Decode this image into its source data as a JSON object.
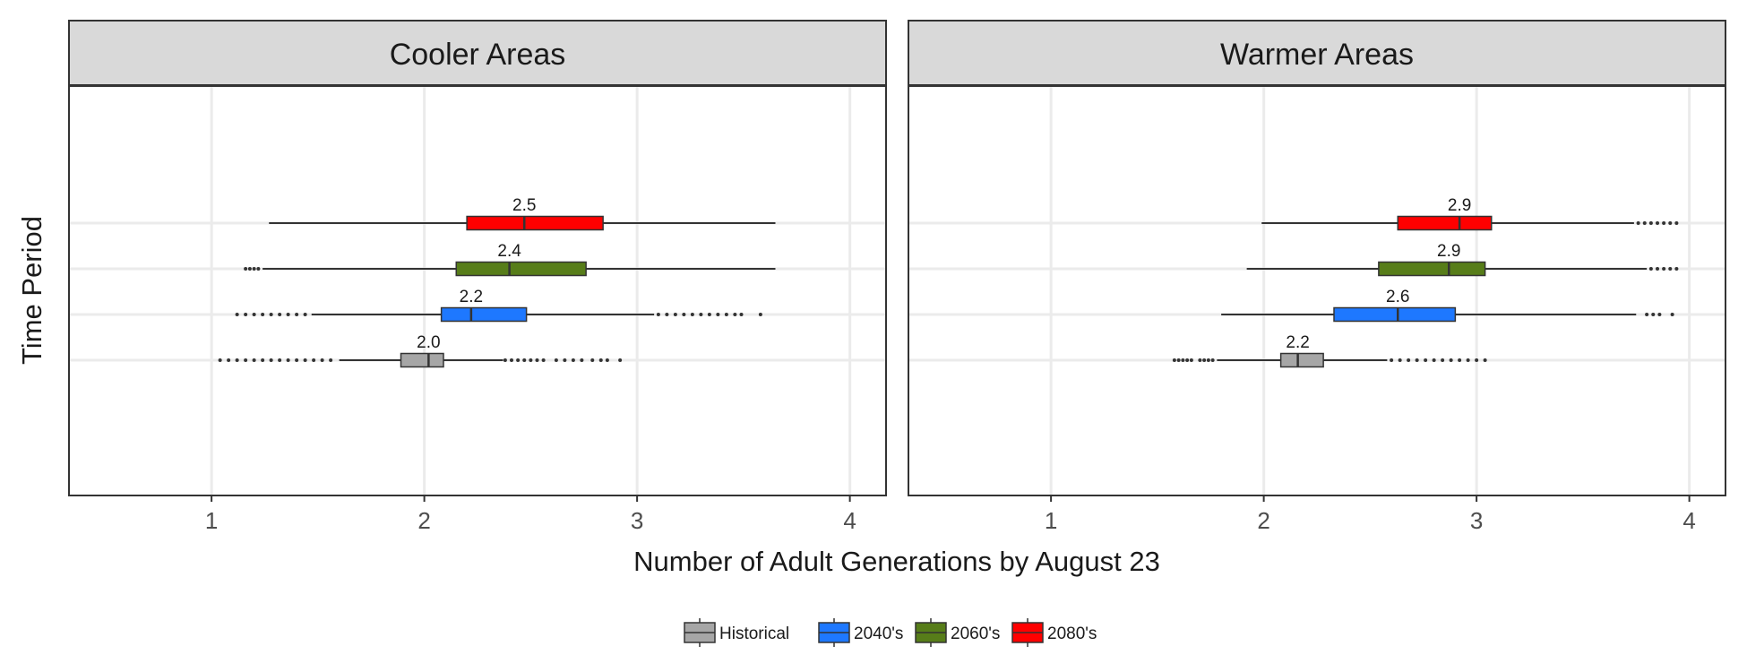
{
  "chart_data": {
    "type": "boxplot",
    "orientation": "horizontal",
    "xlabel": "Number of Adult Generations by August 23",
    "ylabel": "Time Period",
    "xlim": [
      0.33,
      4.17
    ],
    "x_ticks": [
      1,
      2,
      3,
      4
    ],
    "x_tick_labels": [
      "1",
      "2",
      "3",
      "4"
    ],
    "grid": true,
    "legend": {
      "position": "bottom",
      "entries": [
        {
          "name": "Historical",
          "color": "#a6a6a6"
        },
        {
          "name": "2040's",
          "color": "#1e78ff"
        },
        {
          "name": "2060's",
          "color": "#577d19"
        },
        {
          "name": "2080's",
          "color": "#ff0000"
        }
      ]
    },
    "panels": [
      {
        "title": "Cooler Areas",
        "groups": [
          {
            "series": "Historical",
            "whisker_low": 1.6,
            "q1": 1.89,
            "median": 2.02,
            "q3": 2.09,
            "whisker_high": 2.37,
            "label": "2.0",
            "outliers_low": [
              1.04,
              1.08,
              1.12,
              1.16,
              1.2,
              1.24,
              1.28,
              1.32,
              1.36,
              1.4,
              1.44,
              1.48,
              1.52,
              1.56
            ],
            "outliers_high": [
              2.38,
              2.41,
              2.44,
              2.47,
              2.5,
              2.53,
              2.56,
              2.62,
              2.66,
              2.7,
              2.74,
              2.79,
              2.83,
              2.86,
              2.92
            ]
          },
          {
            "series": "2040's",
            "whisker_low": 1.47,
            "q1": 2.08,
            "median": 2.22,
            "q3": 2.48,
            "whisker_high": 3.08,
            "label": "2.2",
            "outliers_low": [
              1.12,
              1.16,
              1.2,
              1.24,
              1.28,
              1.32,
              1.36,
              1.4,
              1.44
            ],
            "outliers_high": [
              3.1,
              3.14,
              3.18,
              3.22,
              3.26,
              3.3,
              3.34,
              3.38,
              3.42,
              3.46,
              3.49,
              3.58
            ]
          },
          {
            "series": "2060's",
            "whisker_low": 1.24,
            "q1": 2.15,
            "median": 2.4,
            "q3": 2.76,
            "whisker_high": 3.65,
            "label": "2.4",
            "outliers_low": [
              1.16,
              1.18,
              1.2,
              1.22
            ],
            "outliers_high": []
          },
          {
            "series": "2080's",
            "whisker_low": 1.27,
            "q1": 2.2,
            "median": 2.47,
            "q3": 2.84,
            "whisker_high": 3.65,
            "label": "2.5",
            "outliers_low": [],
            "outliers_high": []
          }
        ]
      },
      {
        "title": "Warmer Areas",
        "groups": [
          {
            "series": "Historical",
            "whisker_low": 1.78,
            "q1": 2.08,
            "median": 2.16,
            "q3": 2.28,
            "whisker_high": 2.58,
            "label": "2.2",
            "outliers_low": [
              1.58,
              1.6,
              1.62,
              1.64,
              1.66,
              1.7,
              1.72,
              1.74,
              1.76
            ],
            "outliers_high": [
              2.6,
              2.64,
              2.68,
              2.72,
              2.76,
              2.8,
              2.84,
              2.88,
              2.92,
              2.96,
              3.0,
              3.04
            ]
          },
          {
            "series": "2040's",
            "whisker_low": 1.8,
            "q1": 2.33,
            "median": 2.63,
            "q3": 2.9,
            "whisker_high": 3.75,
            "label": "2.6",
            "outliers_low": [],
            "outliers_high": [
              3.8,
              3.83,
              3.86,
              3.92
            ]
          },
          {
            "series": "2060's",
            "whisker_low": 1.92,
            "q1": 2.54,
            "median": 2.87,
            "q3": 3.04,
            "whisker_high": 3.8,
            "label": "2.9",
            "outliers_low": [],
            "outliers_high": [
              3.82,
              3.85,
              3.88,
              3.91,
              3.94
            ]
          },
          {
            "series": "2080's",
            "whisker_low": 1.99,
            "q1": 2.63,
            "median": 2.92,
            "q3": 3.07,
            "whisker_high": 3.74,
            "label": "2.9",
            "outliers_low": [],
            "outliers_high": [
              3.76,
              3.79,
              3.82,
              3.85,
              3.88,
              3.91,
              3.94
            ]
          }
        ]
      }
    ]
  }
}
